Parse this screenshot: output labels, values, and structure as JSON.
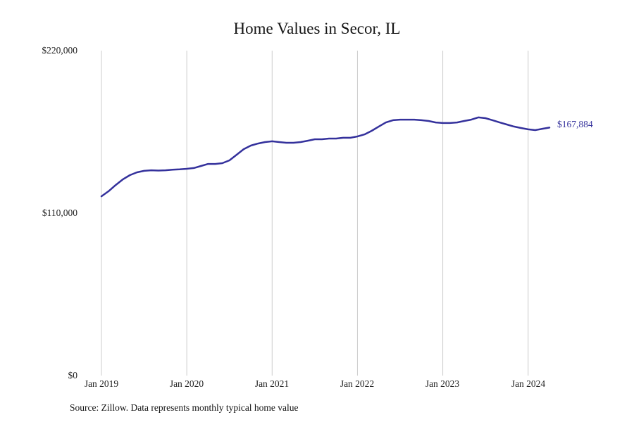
{
  "chart_data": {
    "type": "line",
    "title": "Home Values in Secor, IL",
    "source_note": "Source: Zillow. Data represents monthly typical home value",
    "unit": "USD",
    "line_color": "#34319c",
    "grid_color": "#cccccc",
    "grid": "vertical-only",
    "legend": "none",
    "ylim": [
      0,
      220000
    ],
    "y_ticks": [
      "$220,000",
      "$110,000",
      "$0"
    ],
    "y_tick_values": [
      220000,
      110000,
      0
    ],
    "x_tick_labels": [
      "Jan 2019",
      "Jan 2020",
      "Jan 2021",
      "Jan 2022",
      "Jan 2023",
      "Jan 2024"
    ],
    "x_tick_month_indices": [
      0,
      12,
      24,
      36,
      48,
      60
    ],
    "end_label": "$167,884",
    "latest_value": 167884,
    "months": [
      "Jan 2019",
      "Feb 2019",
      "Mar 2019",
      "Apr 2019",
      "May 2019",
      "Jun 2019",
      "Jul 2019",
      "Aug 2019",
      "Sep 2019",
      "Oct 2019",
      "Nov 2019",
      "Dec 2019",
      "Jan 2020",
      "Feb 2020",
      "Mar 2020",
      "Apr 2020",
      "May 2020",
      "Jun 2020",
      "Jul 2020",
      "Aug 2020",
      "Sep 2020",
      "Oct 2020",
      "Nov 2020",
      "Dec 2020",
      "Jan 2021",
      "Feb 2021",
      "Mar 2021",
      "Apr 2021",
      "May 2021",
      "Jun 2021",
      "Jul 2021",
      "Aug 2021",
      "Sep 2021",
      "Oct 2021",
      "Nov 2021",
      "Dec 2021",
      "Jan 2022",
      "Feb 2022",
      "Mar 2022",
      "Apr 2022",
      "May 2022",
      "Jun 2022",
      "Jul 2022",
      "Aug 2022",
      "Sep 2022",
      "Oct 2022",
      "Nov 2022",
      "Dec 2022",
      "Jan 2023",
      "Feb 2023",
      "Mar 2023",
      "Apr 2023",
      "May 2023",
      "Jun 2023",
      "Jul 2023",
      "Aug 2023",
      "Sep 2023",
      "Oct 2023",
      "Nov 2023",
      "Dec 2023",
      "Jan 2024",
      "Feb 2024",
      "Mar 2024",
      "Apr 2024"
    ],
    "values": [
      121400,
      124800,
      129000,
      132800,
      135700,
      137600,
      138600,
      139000,
      138800,
      139000,
      139400,
      139600,
      140000,
      140500,
      141900,
      143300,
      143300,
      143800,
      145700,
      149500,
      153300,
      155700,
      157100,
      158100,
      158600,
      158100,
      157600,
      157600,
      158100,
      159000,
      160000,
      160000,
      160500,
      160500,
      161000,
      161000,
      161900,
      163300,
      165700,
      168600,
      171400,
      172900,
      173300,
      173300,
      173300,
      172900,
      172400,
      171400,
      171000,
      171000,
      171400,
      172400,
      173300,
      174800,
      174300,
      172900,
      171400,
      170000,
      168600,
      167600,
      166700,
      166200,
      167100,
      167884
    ]
  }
}
